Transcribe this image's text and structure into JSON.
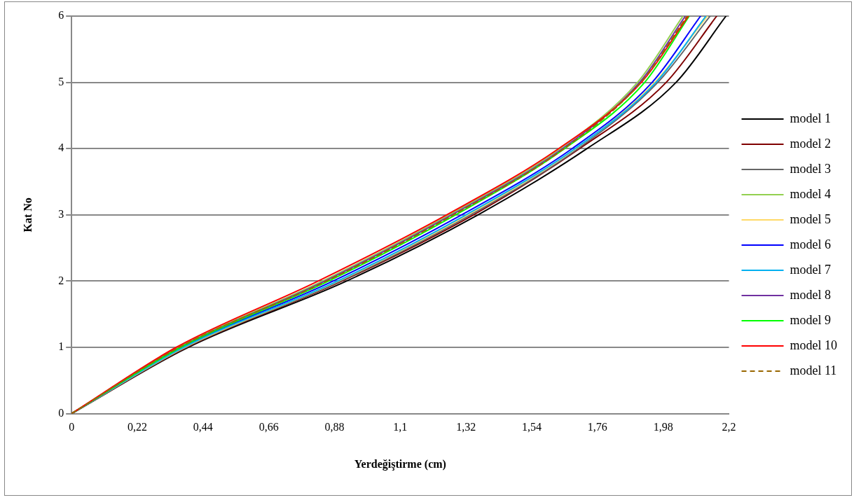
{
  "chart_data": {
    "type": "line",
    "xlabel": "Yerdeğiştirme (cm)",
    "ylabel": "Kat No",
    "xlim": [
      0,
      2.2
    ],
    "xticks": [
      0,
      {
        "value": 0.22,
        "label": "0,22"
      },
      {
        "value": 0.44,
        "label": "0,44"
      },
      {
        "value": 0.66,
        "label": "0,66"
      },
      {
        "value": 0.88,
        "label": "0,88"
      },
      {
        "value": 1.1,
        "label": "1,1"
      },
      {
        "value": 1.32,
        "label": "1,32"
      },
      {
        "value": 1.54,
        "label": "1,54"
      },
      {
        "value": 1.76,
        "label": "1,76"
      },
      {
        "value": 1.98,
        "label": "1,98"
      },
      {
        "value": 2.2,
        "label": "2,2"
      }
    ],
    "ylim": [
      0,
      6
    ],
    "yticks": [
      0,
      1,
      2,
      3,
      4,
      5,
      6
    ],
    "grid": "y",
    "legend": "right",
    "marker": "none",
    "series": [
      {
        "name": "model 1",
        "color": "#000000",
        "x": [
          0,
          0.39,
          0.92,
          1.36,
          1.725,
          2.023,
          2.19
        ],
        "values": [
          0,
          1,
          2,
          3,
          4,
          5,
          6
        ]
      },
      {
        "name": "model 2",
        "color": "#7f0000",
        "x": [
          0,
          0.385,
          0.905,
          1.345,
          1.7,
          1.99,
          2.159
        ],
        "values": [
          0,
          1,
          2,
          3,
          4,
          5,
          6
        ]
      },
      {
        "name": "model 3",
        "color": "#666666",
        "x": [
          0,
          0.382,
          0.9,
          1.335,
          1.695,
          1.962,
          2.137
        ],
        "values": [
          0,
          1,
          2,
          3,
          4,
          5,
          6
        ]
      },
      {
        "name": "model 4",
        "color": "#92d050",
        "x": [
          0,
          0.357,
          0.84,
          1.264,
          1.635,
          1.894,
          2.046
        ],
        "values": [
          0,
          1,
          2,
          3,
          4,
          5,
          6
        ]
      },
      {
        "name": "model 5",
        "color": "#ffd966",
        "x": [
          0,
          0.378,
          0.893,
          1.326,
          1.687,
          1.952,
          2.128
        ],
        "values": [
          0,
          1,
          2,
          3,
          4,
          5,
          6
        ]
      },
      {
        "name": "model 6",
        "color": "#0000ff",
        "x": [
          0,
          0.37,
          0.875,
          1.305,
          1.675,
          1.943,
          2.105
        ],
        "values": [
          0,
          1,
          2,
          3,
          4,
          5,
          6
        ]
      },
      {
        "name": "model 7",
        "color": "#00b0f0",
        "x": [
          0,
          0.375,
          0.89,
          1.32,
          1.685,
          1.956,
          2.123
        ],
        "values": [
          0,
          1,
          2,
          3,
          4,
          5,
          6
        ]
      },
      {
        "name": "model 8",
        "color": "#7030a0",
        "x": [
          0,
          0.362,
          0.848,
          1.272,
          1.643,
          1.901,
          2.054
        ],
        "values": [
          0,
          1,
          2,
          3,
          4,
          5,
          6
        ]
      },
      {
        "name": "model 9",
        "color": "#00ff00",
        "x": [
          0,
          0.365,
          0.86,
          1.285,
          1.65,
          1.918,
          2.067
        ],
        "values": [
          0,
          1,
          2,
          3,
          4,
          5,
          6
        ]
      },
      {
        "name": "model 10",
        "color": "#ff0000",
        "x": [
          0,
          0.35,
          0.825,
          1.255,
          1.63,
          1.907,
          2.064
        ],
        "values": [
          0,
          1,
          2,
          3,
          4,
          5,
          6
        ]
      },
      {
        "name": "model 11",
        "color": "#996600",
        "line_style": "dashed",
        "x": [
          0,
          0.36,
          0.853,
          1.278,
          1.648,
          1.905,
          2.06
        ],
        "values": [
          0,
          1,
          2,
          3,
          4,
          5,
          6
        ]
      }
    ]
  }
}
